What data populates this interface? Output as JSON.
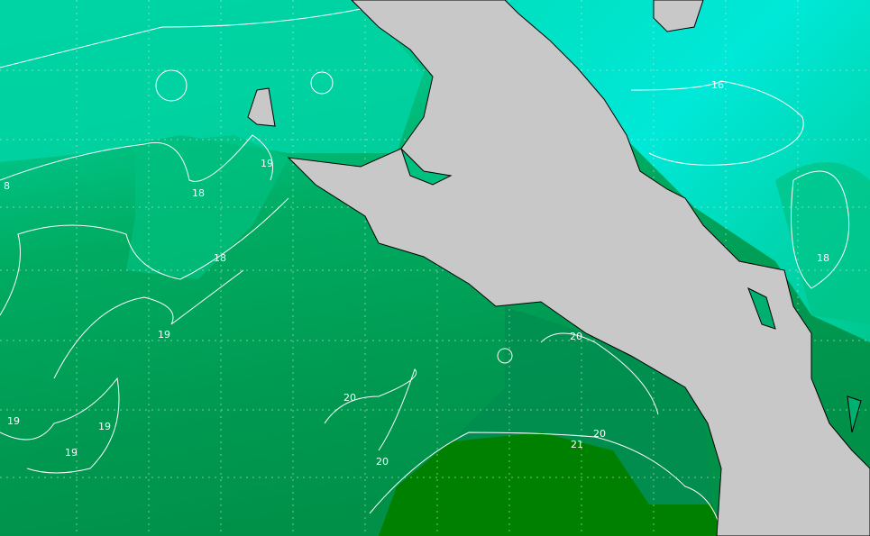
{
  "map": {
    "type": "sea-surface-temperature contour map",
    "colors": {
      "land": "#c8c8c8",
      "sst_16": "#00e8d0",
      "sst_17": "#00d8b0",
      "sst_18": "#00c080",
      "sst_19": "#00aa60",
      "sst_20": "#009850",
      "sst_21": "#008000",
      "contour": "#ffffff",
      "grid": "#b8d8b8"
    },
    "contour_labels": [
      {
        "text": "8"
      },
      {
        "text": "19"
      },
      {
        "text": "18"
      },
      {
        "text": "18"
      },
      {
        "text": "19"
      },
      {
        "text": "16"
      },
      {
        "text": "18"
      },
      {
        "text": "20"
      },
      {
        "text": "20"
      },
      {
        "text": "19"
      },
      {
        "text": "19"
      },
      {
        "text": "19"
      },
      {
        "text": "20"
      },
      {
        "text": "20"
      },
      {
        "text": "21"
      }
    ]
  }
}
